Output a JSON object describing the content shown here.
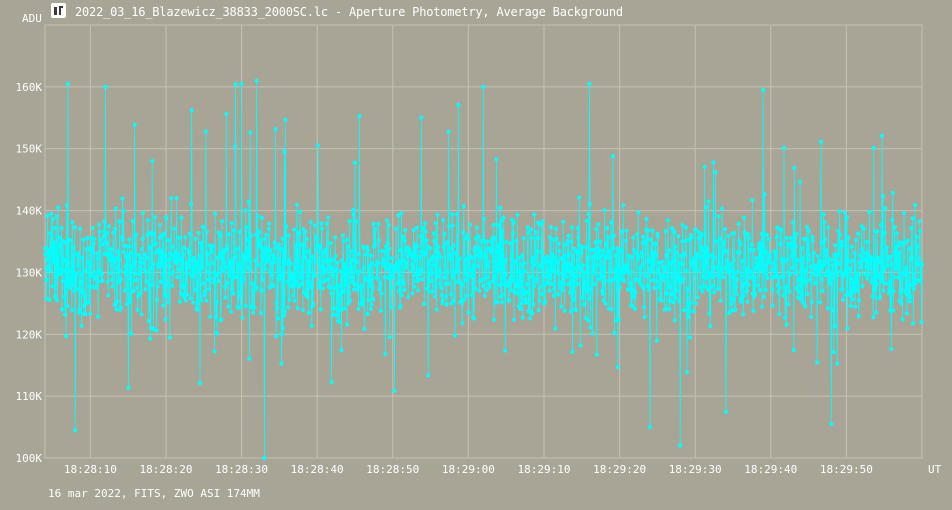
{
  "header": {
    "icon": "chart-window-icon",
    "title": "2022_03_16_Blazewicz_38833_2000SC.lc - Aperture Photometry, Average Background"
  },
  "footer": {
    "text": "16 mar 2022, FITS, ZWO ASI 174MM"
  },
  "colors": {
    "background": "#a8a496",
    "grid": "#c4c1b6",
    "series": "#00ffff",
    "text": "#ffffff"
  },
  "chart_data": {
    "type": "line",
    "title": "2022_03_16_Blazewicz_38833_2000SC.lc - Aperture Photometry, Average Background",
    "xlabel": "UT",
    "ylabel": "ADU",
    "grid": true,
    "markers": true,
    "ylim": [
      100000,
      170000
    ],
    "xlim": [
      "18:28:04",
      "18:30:00"
    ],
    "y_ticks": [
      {
        "value": 100000,
        "label": "100K"
      },
      {
        "value": 110000,
        "label": "110K"
      },
      {
        "value": 120000,
        "label": "120K"
      },
      {
        "value": 130000,
        "label": "130K"
      },
      {
        "value": 140000,
        "label": "140K"
      },
      {
        "value": 150000,
        "label": "150K"
      },
      {
        "value": 160000,
        "label": "160K"
      }
    ],
    "x_ticks": [
      "18:28:10",
      "18:28:20",
      "18:28:30",
      "18:28:40",
      "18:28:50",
      "18:29:00",
      "18:29:10",
      "18:29:20",
      "18:29:30",
      "18:29:40",
      "18:29:50"
    ],
    "x_unit_label": "UT",
    "series": [
      {
        "color": "#00ffff",
        "sampling": "dense noisy light curve, approx. 1800 samples between 18:28:04 and 18:30:00",
        "x_start": "18:28:04",
        "x_end": "18:30:00",
        "typical_center": 131000,
        "typical_band": [
          119000,
          146000
        ],
        "observed_min": 100000,
        "observed_max": 161000,
        "envelope": [
          {
            "t": "18:28:04",
            "low": 113000,
            "high": 160000
          },
          {
            "t": "18:28:10",
            "low": 110000,
            "high": 154000
          },
          {
            "t": "18:28:20",
            "low": 108000,
            "high": 155000
          },
          {
            "t": "18:28:30",
            "low": 100000,
            "high": 161000
          },
          {
            "t": "18:28:40",
            "low": 105000,
            "high": 156000
          },
          {
            "t": "18:28:50",
            "low": 110000,
            "high": 157000
          },
          {
            "t": "18:29:00",
            "low": 112000,
            "high": 160000
          },
          {
            "t": "18:29:10",
            "low": 110000,
            "high": 159000
          },
          {
            "t": "18:29:20",
            "low": 105000,
            "high": 152000
          },
          {
            "t": "18:29:30",
            "low": 102000,
            "high": 157000
          },
          {
            "t": "18:29:40",
            "low": 106000,
            "high": 159000
          },
          {
            "t": "18:29:50",
            "low": 108000,
            "high": 157000
          },
          {
            "t": "18:30:00",
            "low": 115000,
            "high": 149000
          }
        ],
        "notable_points": [
          {
            "t": "18:28:07",
            "y": 160500
          },
          {
            "t": "18:28:08",
            "y": 104500
          },
          {
            "t": "18:28:12",
            "y": 160000
          },
          {
            "t": "18:28:30",
            "y": 160500
          },
          {
            "t": "18:28:32",
            "y": 161000
          },
          {
            "t": "18:28:33",
            "y": 100000
          },
          {
            "t": "18:29:02",
            "y": 160000
          },
          {
            "t": "18:29:16",
            "y": 160500
          },
          {
            "t": "18:29:24",
            "y": 105000
          },
          {
            "t": "18:29:28",
            "y": 102000
          },
          {
            "t": "18:29:39",
            "y": 159500
          },
          {
            "t": "18:29:48",
            "y": 105500
          }
        ]
      }
    ]
  }
}
